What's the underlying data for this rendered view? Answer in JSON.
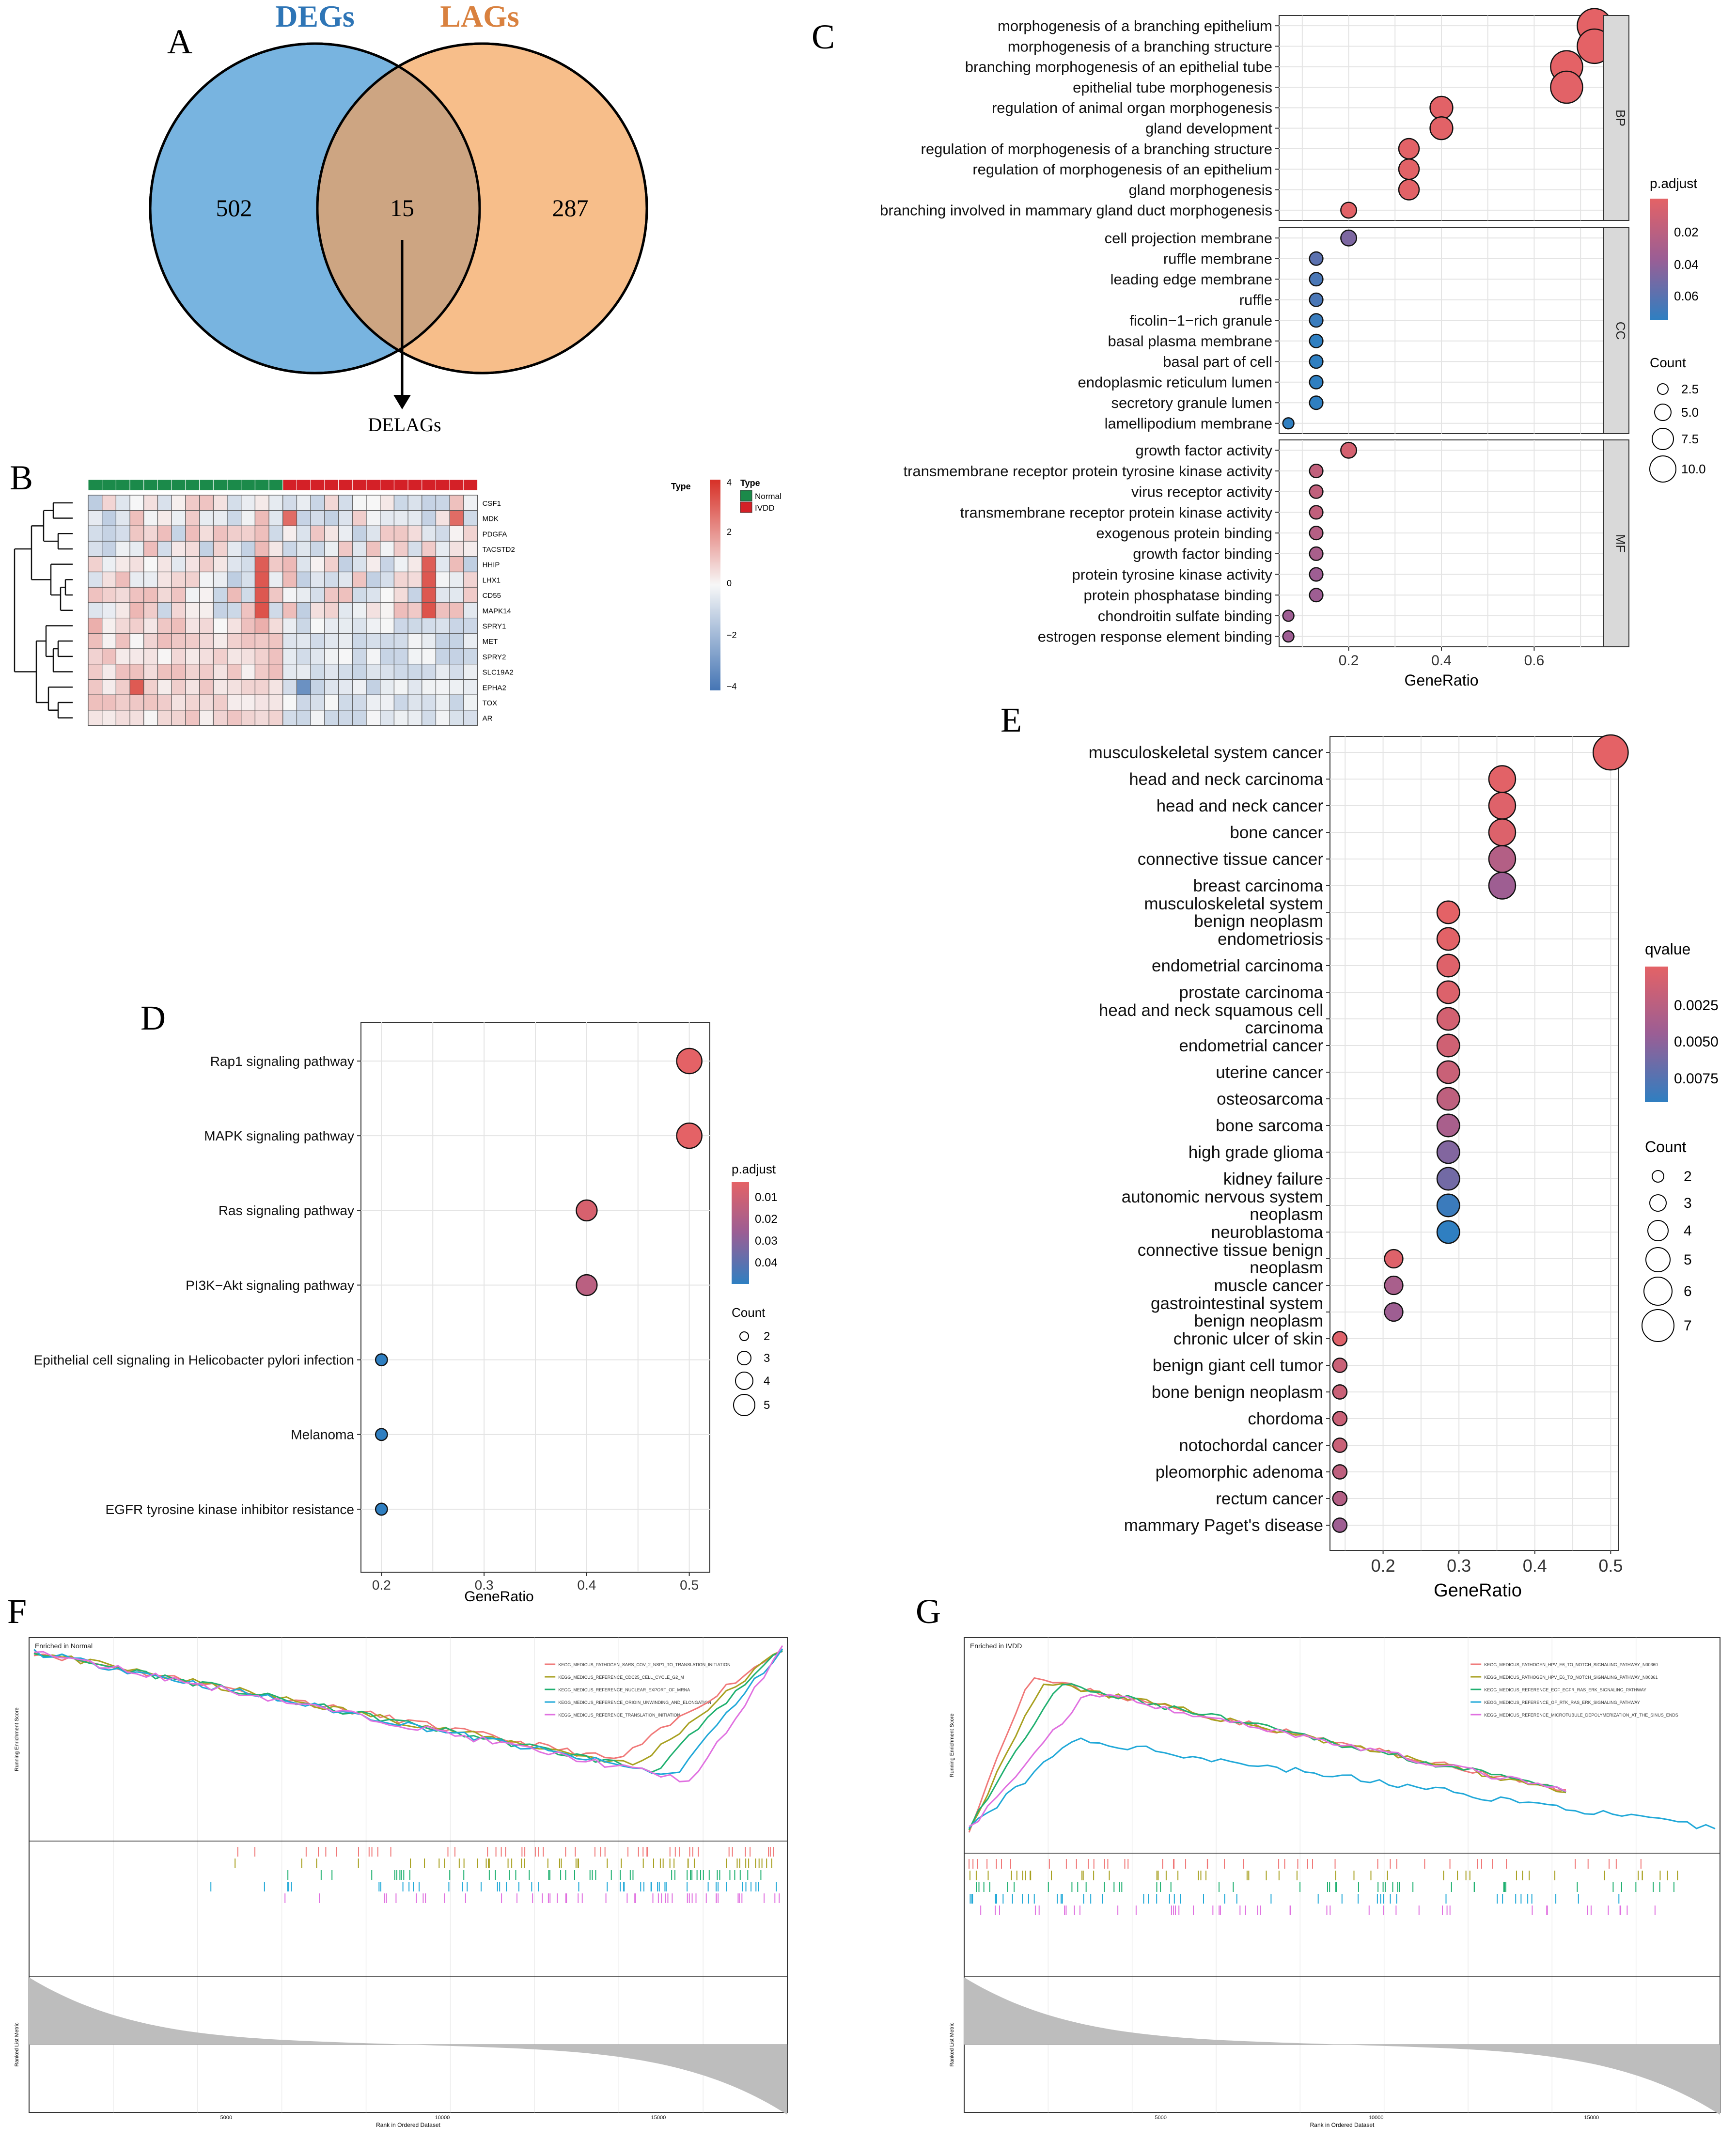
{
  "panels": {
    "A": {
      "letter": "A",
      "set_left_title": "DEGs",
      "set_right_title": "LAGs",
      "left_only": "502",
      "overlap": "15",
      "right_only": "287",
      "arrow_label": "DELAGs",
      "colors": {
        "left": "#78b4e0",
        "right": "#f7be8a",
        "overlap": "#cda582",
        "left_title": "#2e75b6",
        "right_title": "#d9813f"
      }
    },
    "B": {
      "letter": "B",
      "annotation_header": "Type",
      "legend_title": "Type",
      "legend_items": [
        {
          "label": "Normal",
          "color": "#1b8a4a"
        },
        {
          "label": "IVDD",
          "color": "#d42027"
        }
      ],
      "scale_ticks": [
        "4",
        "2",
        "0",
        "−2",
        "−4"
      ],
      "genes": [
        "CSF1",
        "MDK",
        "PDGFA",
        "TACSTD2",
        "HHIP",
        "LHX1",
        "CD55",
        "MAPK14",
        "SPRY1",
        "MET",
        "SPRY2",
        "SLC19A2",
        "EPHA2",
        "TOX",
        "AR"
      ],
      "n_normal": 14,
      "n_ivdd": 14
    },
    "C": {
      "letter": "C",
      "xlabel": "GeneRatio",
      "x_ticks": [
        "0.2",
        "0.4",
        "0.6"
      ],
      "legend_color_title": "p.adjust",
      "legend_color_ticks": [
        "0.02",
        "0.04",
        "0.06"
      ],
      "legend_size_title": "Count",
      "legend_size_ticks": [
        "2.5",
        "5.0",
        "7.5",
        "10.0"
      ],
      "facets": [
        "BP",
        "CC",
        "MF"
      ]
    },
    "D": {
      "letter": "D",
      "xlabel": "GeneRatio",
      "x_ticks": [
        "0.2",
        "0.3",
        "0.4",
        "0.5"
      ],
      "legend_color_title": "p.adjust",
      "legend_color_ticks": [
        "0.01",
        "0.02",
        "0.03",
        "0.04"
      ],
      "legend_size_title": "Count",
      "legend_size_ticks": [
        "2",
        "3",
        "4",
        "5"
      ]
    },
    "E": {
      "letter": "E",
      "xlabel": "GeneRatio",
      "x_ticks": [
        "0.2",
        "0.3",
        "0.4",
        "0.5"
      ],
      "legend_color_title": "qvalue",
      "legend_color_ticks": [
        "0.0025",
        "0.0050",
        "0.0075"
      ],
      "legend_size_title": "Count",
      "legend_size_ticks": [
        "2",
        "3",
        "4",
        "5",
        "6",
        "7"
      ]
    },
    "F": {
      "letter": "F",
      "title": "Enriched in Normal",
      "ylabel_top": "Running Enrichment Score",
      "ylabel_bottom": "Ranked List Metric",
      "xlabel": "Rank in Ordered Dataset",
      "x_ticks": [
        "5000",
        "10000",
        "15000"
      ],
      "legend": [
        {
          "label": "KEGG_MEDICUS_PATHOGEN_SARS_COV_2_NSP1_TO_TRANSLATION_INITIATION",
          "color": "#f07878"
        },
        {
          "label": "KEGG_MEDICUS_REFERENCE_CDC25_CELL_CYCLE_G2_M",
          "color": "#a8a020"
        },
        {
          "label": "KEGG_MEDICUS_REFERENCE_NUCLEAR_EXPORT_OF_MRNA",
          "color": "#20b070"
        },
        {
          "label": "KEGG_MEDICUS_REFERENCE_ORIGIN_UNWINDING_AND_ELONGATION",
          "color": "#20a8d8"
        },
        {
          "label": "KEGG_MEDICUS_REFERENCE_TRANSLATION_INITIATION",
          "color": "#e070e0"
        }
      ]
    },
    "G": {
      "letter": "G",
      "title": "Enriched in IVDD",
      "ylabel_top": "Running Enrichment Score",
      "ylabel_bottom": "Ranked List Metric",
      "xlabel": "Rank in Ordered Dataset",
      "x_ticks": [
        "5000",
        "10000",
        "15000"
      ],
      "legend": [
        {
          "label": "KEGG_MEDICUS_PATHOGEN_HPV_E6_TO_NOTCH_SIGNALING_PATHWAY_N00360",
          "color": "#f07878"
        },
        {
          "label": "KEGG_MEDICUS_PATHOGEN_HPV_E6_TO_NOTCH_SIGNALING_PATHWAY_N00361",
          "color": "#a8a020"
        },
        {
          "label": "KEGG_MEDICUS_REFERENCE_EGF_EGFR_RAS_ERK_SIGNALING_PATHWAY",
          "color": "#20b070"
        },
        {
          "label": "KEGG_MEDICUS_REFERENCE_GF_RTK_RAS_ERK_SIGNALING_PATHWAY",
          "color": "#20a8d8"
        },
        {
          "label": "KEGG_MEDICUS_REFERENCE_MICROTUBULE_DEPOLYMERIZATION_AT_THE_SINUS_ENDS",
          "color": "#e070e0"
        }
      ]
    }
  },
  "chart_data": [
    {
      "panel": "C",
      "type": "scatter",
      "title": "",
      "xlabel": "GeneRatio",
      "ylabel": "",
      "xlim": [
        0.05,
        0.75
      ],
      "facets": [
        {
          "name": "BP",
          "terms": [
            {
              "term": "morphogenesis of a branching epithelium",
              "ratio": 0.73,
              "count": 11,
              "padj": 0.005
            },
            {
              "term": "morphogenesis of a branching structure",
              "ratio": 0.73,
              "count": 11,
              "padj": 0.005
            },
            {
              "term": "branching morphogenesis of an epithelial tube",
              "ratio": 0.67,
              "count": 10,
              "padj": 0.005
            },
            {
              "term": "epithelial tube morphogenesis",
              "ratio": 0.67,
              "count": 10,
              "padj": 0.006
            },
            {
              "term": "regulation of animal organ morphogenesis",
              "ratio": 0.4,
              "count": 6,
              "padj": 0.006
            },
            {
              "term": "gland development",
              "ratio": 0.4,
              "count": 6,
              "padj": 0.006
            },
            {
              "term": "regulation of morphogenesis of a branching structure",
              "ratio": 0.33,
              "count": 5,
              "padj": 0.006
            },
            {
              "term": "regulation of morphogenesis of an epithelium",
              "ratio": 0.33,
              "count": 5,
              "padj": 0.006
            },
            {
              "term": "gland morphogenesis",
              "ratio": 0.33,
              "count": 5,
              "padj": 0.006
            },
            {
              "term": "branching involved in mammary gland duct morphogenesis",
              "ratio": 0.2,
              "count": 3,
              "padj": 0.006
            }
          ]
        },
        {
          "name": "CC",
          "terms": [
            {
              "term": "cell projection membrane",
              "ratio": 0.2,
              "count": 3,
              "padj": 0.045
            },
            {
              "term": "ruffle membrane",
              "ratio": 0.13,
              "count": 2,
              "padj": 0.055
            },
            {
              "term": "leading edge membrane",
              "ratio": 0.13,
              "count": 2,
              "padj": 0.06
            },
            {
              "term": "ruffle",
              "ratio": 0.13,
              "count": 2,
              "padj": 0.06
            },
            {
              "term": "ficolin−1−rich granule",
              "ratio": 0.13,
              "count": 2,
              "padj": 0.065
            },
            {
              "term": "basal plasma membrane",
              "ratio": 0.13,
              "count": 2,
              "padj": 0.068
            },
            {
              "term": "basal part of cell",
              "ratio": 0.13,
              "count": 2,
              "padj": 0.068
            },
            {
              "term": "endoplasmic reticulum lumen",
              "ratio": 0.13,
              "count": 2,
              "padj": 0.068
            },
            {
              "term": "secretory granule lumen",
              "ratio": 0.13,
              "count": 2,
              "padj": 0.068
            },
            {
              "term": "lamellipodium membrane",
              "ratio": 0.07,
              "count": 1,
              "padj": 0.068
            }
          ]
        },
        {
          "name": "MF",
          "terms": [
            {
              "term": "growth factor activity",
              "ratio": 0.2,
              "count": 3,
              "padj": 0.012
            },
            {
              "term": "transmembrane receptor protein tyrosine kinase activity",
              "ratio": 0.13,
              "count": 2,
              "padj": 0.02
            },
            {
              "term": "virus receptor activity",
              "ratio": 0.13,
              "count": 2,
              "padj": 0.02
            },
            {
              "term": "transmembrane receptor protein kinase activity",
              "ratio": 0.13,
              "count": 2,
              "padj": 0.02
            },
            {
              "term": "exogenous protein binding",
              "ratio": 0.13,
              "count": 2,
              "padj": 0.025
            },
            {
              "term": "growth factor binding",
              "ratio": 0.13,
              "count": 2,
              "padj": 0.03
            },
            {
              "term": "protein tyrosine kinase activity",
              "ratio": 0.13,
              "count": 2,
              "padj": 0.035
            },
            {
              "term": "protein phosphatase binding",
              "ratio": 0.13,
              "count": 2,
              "padj": 0.035
            },
            {
              "term": "chondroitin sulfate binding",
              "ratio": 0.07,
              "count": 1,
              "padj": 0.035
            },
            {
              "term": "estrogen response element binding",
              "ratio": 0.07,
              "count": 1,
              "padj": 0.035
            }
          ]
        }
      ]
    },
    {
      "panel": "D",
      "type": "scatter",
      "title": "",
      "xlabel": "GeneRatio",
      "xlim": [
        0.18,
        0.52
      ],
      "terms": [
        {
          "term": "Rap1 signaling pathway",
          "ratio": 0.5,
          "count": 5,
          "padj": 0.005
        },
        {
          "term": "MAPK signaling pathway",
          "ratio": 0.5,
          "count": 5,
          "padj": 0.005
        },
        {
          "term": "Ras signaling pathway",
          "ratio": 0.4,
          "count": 4,
          "padj": 0.008
        },
        {
          "term": "PI3K−Akt signaling pathway",
          "ratio": 0.4,
          "count": 4,
          "padj": 0.015
        },
        {
          "term": "Epithelial cell signaling in Helicobacter pylori infection",
          "ratio": 0.2,
          "count": 2,
          "padj": 0.04
        },
        {
          "term": "Melanoma",
          "ratio": 0.2,
          "count": 2,
          "padj": 0.04
        },
        {
          "term": "EGFR tyrosine kinase inhibitor resistance",
          "ratio": 0.2,
          "count": 2,
          "padj": 0.04
        }
      ]
    },
    {
      "panel": "E",
      "type": "scatter",
      "title": "",
      "xlabel": "GeneRatio",
      "xlim": [
        0.13,
        0.51
      ],
      "terms": [
        {
          "term": "musculoskeletal system cancer",
          "ratio": 0.5,
          "count": 7,
          "q": 0.0012
        },
        {
          "term": "head and neck carcinoma",
          "ratio": 0.357,
          "count": 5,
          "q": 0.0013
        },
        {
          "term": "head and neck cancer",
          "ratio": 0.357,
          "count": 5,
          "q": 0.0015
        },
        {
          "term": "bone cancer",
          "ratio": 0.357,
          "count": 5,
          "q": 0.0016
        },
        {
          "term": "connective tissue cancer",
          "ratio": 0.357,
          "count": 5,
          "q": 0.0035
        },
        {
          "term": "breast carcinoma",
          "ratio": 0.357,
          "count": 5,
          "q": 0.0045
        },
        {
          "term": "musculoskeletal system benign neoplasm",
          "ratio": 0.286,
          "count": 4,
          "q": 0.0012
        },
        {
          "term": "endometriosis",
          "ratio": 0.286,
          "count": 4,
          "q": 0.0013
        },
        {
          "term": "endometrial carcinoma",
          "ratio": 0.286,
          "count": 4,
          "q": 0.0015
        },
        {
          "term": "prostate carcinoma",
          "ratio": 0.286,
          "count": 4,
          "q": 0.0016
        },
        {
          "term": "head and neck squamous cell carcinoma",
          "ratio": 0.286,
          "count": 4,
          "q": 0.002
        },
        {
          "term": "endometrial cancer",
          "ratio": 0.286,
          "count": 4,
          "q": 0.0022
        },
        {
          "term": "uterine cancer",
          "ratio": 0.286,
          "count": 4,
          "q": 0.0025
        },
        {
          "term": "osteosarcoma",
          "ratio": 0.286,
          "count": 4,
          "q": 0.003
        },
        {
          "term": "bone sarcoma",
          "ratio": 0.286,
          "count": 4,
          "q": 0.004
        },
        {
          "term": "high grade glioma",
          "ratio": 0.286,
          "count": 4,
          "q": 0.0055
        },
        {
          "term": "kidney failure",
          "ratio": 0.286,
          "count": 4,
          "q": 0.006
        },
        {
          "term": "autonomic nervous system neoplasm",
          "ratio": 0.286,
          "count": 4,
          "q": 0.0078
        },
        {
          "term": "neuroblastoma",
          "ratio": 0.286,
          "count": 4,
          "q": 0.0082
        },
        {
          "term": "connective tissue benign neoplasm",
          "ratio": 0.214,
          "count": 3,
          "q": 0.0015
        },
        {
          "term": "muscle cancer",
          "ratio": 0.214,
          "count": 3,
          "q": 0.004
        },
        {
          "term": "gastrointestinal system benign neoplasm",
          "ratio": 0.214,
          "count": 3,
          "q": 0.0045
        },
        {
          "term": "chronic ulcer of skin",
          "ratio": 0.143,
          "count": 2,
          "q": 0.0015
        },
        {
          "term": "benign giant cell tumor",
          "ratio": 0.143,
          "count": 2,
          "q": 0.0025
        },
        {
          "term": "bone benign neoplasm",
          "ratio": 0.143,
          "count": 2,
          "q": 0.0025
        },
        {
          "term": "chordoma",
          "ratio": 0.143,
          "count": 2,
          "q": 0.0025
        },
        {
          "term": "notochordal cancer",
          "ratio": 0.143,
          "count": 2,
          "q": 0.0025
        },
        {
          "term": "pleomorphic adenoma",
          "ratio": 0.143,
          "count": 2,
          "q": 0.003
        },
        {
          "term": "rectum cancer",
          "ratio": 0.143,
          "count": 2,
          "q": 0.0035
        },
        {
          "term": "mammary Paget's disease",
          "ratio": 0.143,
          "count": 2,
          "q": 0.0045
        }
      ]
    }
  ]
}
